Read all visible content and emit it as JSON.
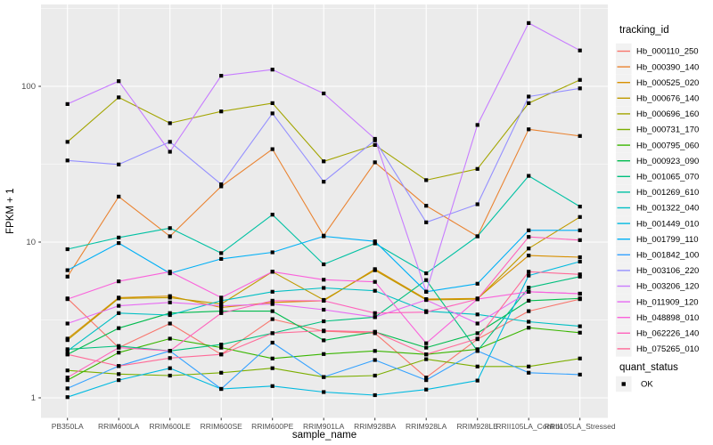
{
  "chart_data": {
    "type": "line",
    "title": "",
    "xlabel": "sample_name",
    "ylabel": "FPKM + 1",
    "y_scale": "log10",
    "y_ticks": [
      1,
      10,
      100
    ],
    "y_tick_labels": [
      "1",
      "10",
      "100"
    ],
    "y_minor_ticks": [
      3.162,
      31.62,
      316.2
    ],
    "grid_on": true,
    "legend_position": "right",
    "panel_bg": "#EBEBEB",
    "grid_color": "#FFFFFF",
    "tick_label_color": "#4D4D4D",
    "point_color": "#000000",
    "key_fill": "#F2F2F2",
    "x_categories": [
      "PB350LA",
      "RRIM600LA",
      "RRIM600LE",
      "RRIM600SE",
      "RRIM600PE",
      "RRIM901LA",
      "RRIM928BA",
      "RRIM928LA",
      "RRIM928LE",
      "RRII105LA_Control",
      "RRII105LA_Stressed"
    ],
    "legend_tracking_title": "tracking_id",
    "legend_quant_title": "quant_status",
    "quant_items": [
      "OK"
    ],
    "series": [
      {
        "name": "Hb_000110_250",
        "color": "#F8766D",
        "values": [
          4.35,
          2.1,
          3.0,
          1.9,
          3.2,
          2.68,
          2.6,
          1.35,
          2.38,
          3.6,
          4.3
        ]
      },
      {
        "name": "Hb_000390_140",
        "color": "#EA8331",
        "values": [
          6.0,
          19.6,
          10.9,
          22.8,
          39.5,
          11.0,
          32.5,
          17.1,
          10.9,
          53.0,
          48.0
        ]
      },
      {
        "name": "Hb_000525_020",
        "color": "#D89000",
        "values": [
          2.4,
          4.4,
          4.5,
          3.8,
          4.1,
          4.2,
          6.7,
          4.3,
          4.35,
          8.2,
          8.0
        ]
      },
      {
        "name": "Hb_000676_140",
        "color": "#C09B00",
        "values": [
          2.35,
          4.35,
          4.4,
          4.0,
          6.45,
          4.25,
          6.6,
          4.25,
          4.3,
          9.1,
          14.5
        ]
      },
      {
        "name": "Hb_000696_160",
        "color": "#A3A500",
        "values": [
          44.0,
          85.0,
          58.0,
          69.0,
          78.0,
          33.0,
          42.0,
          25.0,
          29.5,
          78.0,
          110.0
        ]
      },
      {
        "name": "Hb_000731_170",
        "color": "#7CAE00",
        "values": [
          1.5,
          1.42,
          1.39,
          1.45,
          1.55,
          1.36,
          1.39,
          1.77,
          1.59,
          1.59,
          1.79
        ]
      },
      {
        "name": "Hb_000795_060",
        "color": "#39B600",
        "values": [
          1.3,
          1.95,
          2.4,
          2.1,
          1.79,
          1.91,
          2.0,
          1.9,
          2.05,
          2.82,
          2.62
        ]
      },
      {
        "name": "Hb_000923_090",
        "color": "#00BB4E",
        "values": [
          1.9,
          2.8,
          3.5,
          3.6,
          3.6,
          2.34,
          2.65,
          2.1,
          2.6,
          4.2,
          4.35
        ]
      },
      {
        "name": "Hb_001065_070",
        "color": "#00BF7D",
        "values": [
          2.05,
          2.15,
          2.0,
          2.2,
          2.6,
          3.1,
          3.3,
          5.7,
          2.0,
          5.1,
          6.0
        ]
      },
      {
        "name": "Hb_001269_610",
        "color": "#00C1A3",
        "values": [
          9.0,
          10.7,
          12.3,
          8.5,
          15.0,
          7.2,
          9.8,
          6.3,
          10.9,
          26.6,
          16.9
        ]
      },
      {
        "name": "Hb_001322_040",
        "color": "#00BFC4",
        "values": [
          2.0,
          3.5,
          3.4,
          4.2,
          4.8,
          5.08,
          4.87,
          3.6,
          3.43,
          3.08,
          2.88
        ]
      },
      {
        "name": "Hb_001449_010",
        "color": "#00BAE0",
        "values": [
          1.01,
          1.3,
          1.55,
          1.14,
          1.19,
          1.09,
          1.04,
          1.13,
          1.29,
          6.1,
          7.5
        ]
      },
      {
        "name": "Hb_001799_110",
        "color": "#00B0F6",
        "values": [
          6.6,
          9.85,
          6.3,
          7.8,
          8.6,
          10.9,
          10.1,
          4.8,
          5.4,
          11.9,
          11.9
        ]
      },
      {
        "name": "Hb_001842_100",
        "color": "#35A2FF",
        "values": [
          1.15,
          1.6,
          2.0,
          1.14,
          2.26,
          1.36,
          1.75,
          1.3,
          2.0,
          1.45,
          1.41
        ]
      },
      {
        "name": "Hb_003106_220",
        "color": "#9590FF",
        "values": [
          33.4,
          31.5,
          44.0,
          23.5,
          67.0,
          24.4,
          45.0,
          13.4,
          17.5,
          86.0,
          97.0
        ]
      },
      {
        "name": "Hb_003206_120",
        "color": "#C77CFF",
        "values": [
          77.0,
          108.0,
          38.0,
          117.0,
          128.0,
          90.0,
          46.0,
          4.8,
          56.5,
          255.0,
          170.0
        ]
      },
      {
        "name": "Hb_011909_120",
        "color": "#E76BF3",
        "values": [
          3.0,
          3.9,
          4.1,
          3.9,
          4.0,
          3.68,
          3.3,
          4.25,
          3.0,
          4.8,
          4.66
        ]
      },
      {
        "name": "Hb_048898_010",
        "color": "#FA62DB",
        "values": [
          4.3,
          5.6,
          6.45,
          4.4,
          6.45,
          5.73,
          5.55,
          2.24,
          4.3,
          4.8,
          4.66
        ]
      },
      {
        "name": "Hb_062226_140",
        "color": "#FF62BC",
        "values": [
          1.35,
          2.1,
          2.0,
          3.5,
          4.2,
          4.2,
          3.5,
          3.55,
          4.3,
          10.8,
          10.3
        ]
      },
      {
        "name": "Hb_075265_010",
        "color": "#FF6A98",
        "values": [
          1.9,
          1.6,
          1.8,
          1.9,
          2.6,
          2.7,
          2.65,
          1.9,
          2.4,
          6.45,
          6.2
        ]
      }
    ]
  }
}
